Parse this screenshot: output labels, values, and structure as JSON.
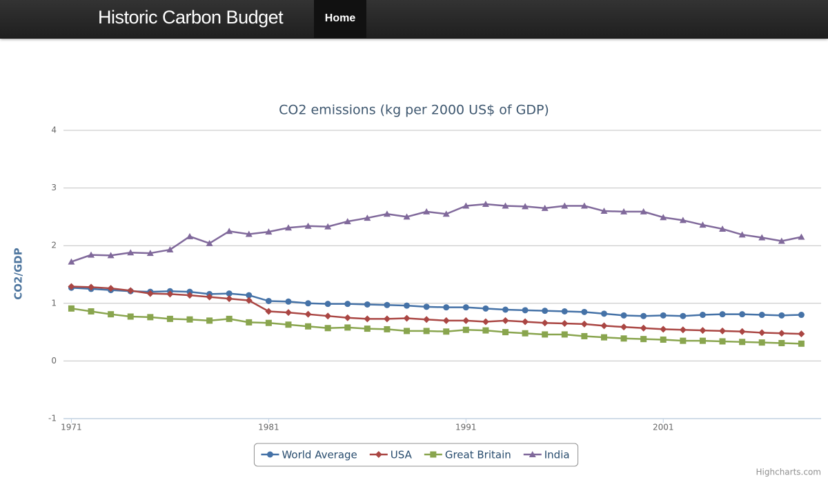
{
  "navbar": {
    "brand": "Historic Carbon Budget",
    "links": [
      "Home"
    ]
  },
  "chart_data": {
    "type": "line",
    "title": "CO2 emissions (kg per 2000 US$ of GDP)",
    "y_label": "CO2/GDP",
    "credits": "Highcharts.com",
    "x": [
      1971,
      1972,
      1973,
      1974,
      1975,
      1976,
      1977,
      1978,
      1979,
      1980,
      1981,
      1982,
      1983,
      1984,
      1985,
      1986,
      1987,
      1988,
      1989,
      1990,
      1991,
      1992,
      1993,
      1994,
      1995,
      1996,
      1997,
      1998,
      1999,
      2000,
      2001,
      2002,
      2003,
      2004,
      2005,
      2006,
      2007,
      2008
    ],
    "xlim": [
      1970.6,
      2009
    ],
    "xticks": [
      1971,
      1981,
      1991,
      2001
    ],
    "ylim": [
      -1,
      4
    ],
    "yticks": [
      -1,
      0,
      1,
      2,
      3,
      4
    ],
    "grid": true,
    "legend": "bottom",
    "series": [
      {
        "name": "World Average",
        "color": "#4572A7",
        "marker": "circle",
        "values": [
          1.27,
          1.25,
          1.23,
          1.21,
          1.2,
          1.21,
          1.2,
          1.16,
          1.17,
          1.14,
          1.04,
          1.03,
          1.0,
          0.99,
          0.99,
          0.98,
          0.97,
          0.96,
          0.94,
          0.93,
          0.93,
          0.91,
          0.89,
          0.88,
          0.87,
          0.86,
          0.85,
          0.82,
          0.79,
          0.78,
          0.79,
          0.78,
          0.8,
          0.81,
          0.81,
          0.8,
          0.79,
          0.8
        ]
      },
      {
        "name": "USA",
        "color": "#AA4643",
        "marker": "diamond",
        "values": [
          1.29,
          1.28,
          1.26,
          1.22,
          1.17,
          1.16,
          1.14,
          1.11,
          1.08,
          1.05,
          0.86,
          0.84,
          0.81,
          0.78,
          0.75,
          0.73,
          0.73,
          0.74,
          0.72,
          0.7,
          0.7,
          0.68,
          0.7,
          0.68,
          0.66,
          0.65,
          0.64,
          0.61,
          0.59,
          0.57,
          0.55,
          0.54,
          0.53,
          0.52,
          0.51,
          0.49,
          0.48,
          0.47
        ]
      },
      {
        "name": "Great Britain",
        "color": "#89A54E",
        "marker": "square",
        "values": [
          0.91,
          0.86,
          0.81,
          0.77,
          0.76,
          0.73,
          0.72,
          0.7,
          0.73,
          0.67,
          0.66,
          0.63,
          0.6,
          0.57,
          0.58,
          0.56,
          0.55,
          0.52,
          0.52,
          0.51,
          0.54,
          0.53,
          0.5,
          0.48,
          0.46,
          0.46,
          0.43,
          0.41,
          0.39,
          0.38,
          0.37,
          0.35,
          0.35,
          0.34,
          0.33,
          0.32,
          0.31,
          0.3
        ]
      },
      {
        "name": "India",
        "color": "#80699B",
        "marker": "triangle",
        "values": [
          1.72,
          1.84,
          1.83,
          1.88,
          1.87,
          1.93,
          2.16,
          2.04,
          2.25,
          2.2,
          2.24,
          2.31,
          2.34,
          2.33,
          2.42,
          2.48,
          2.55,
          2.5,
          2.59,
          2.55,
          2.69,
          2.72,
          2.69,
          2.68,
          2.65,
          2.69,
          2.69,
          2.6,
          2.59,
          2.59,
          2.49,
          2.44,
          2.36,
          2.29,
          2.19,
          2.14,
          2.08,
          2.15
        ]
      }
    ]
  }
}
